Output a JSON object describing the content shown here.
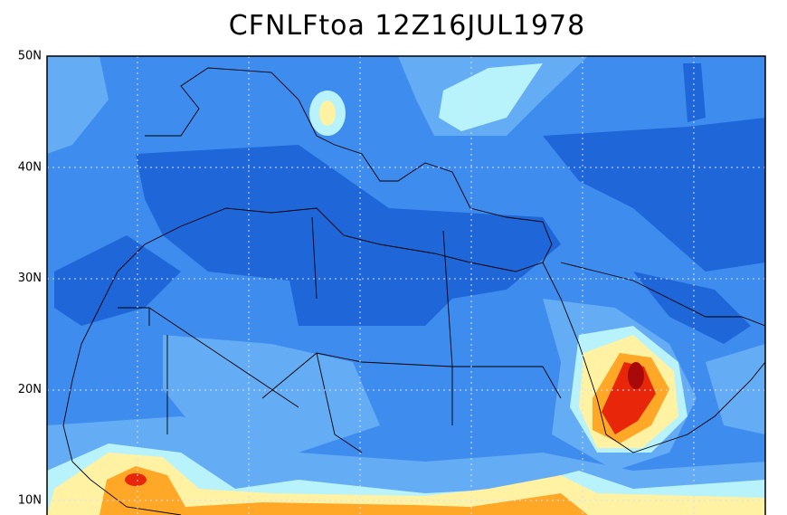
{
  "title": "CFNLFtoa 12Z16JUL1978",
  "lat_labels": [
    "50N",
    "40N",
    "30N",
    "20N",
    "10N"
  ]
}
